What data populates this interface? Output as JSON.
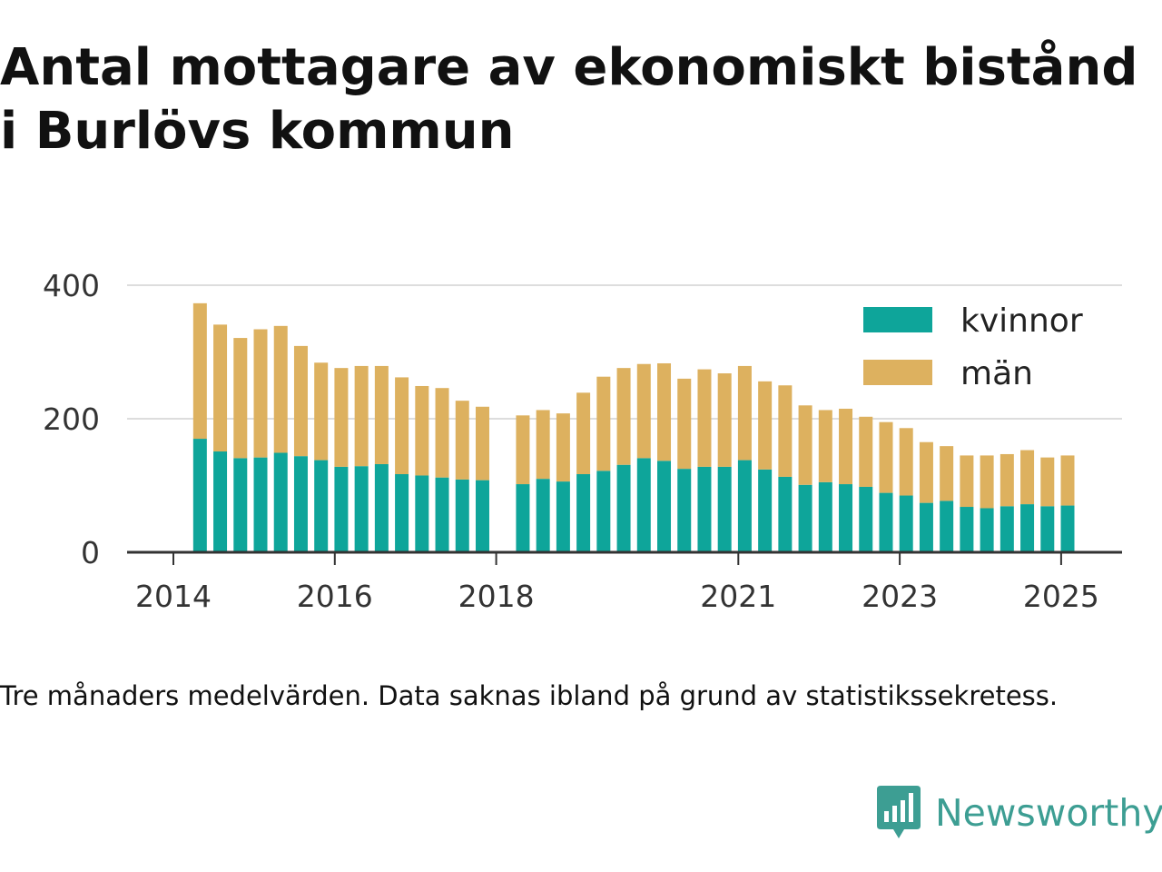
{
  "title_line1": "Antal mottagare av ekonomiskt bistånd",
  "title_line2": "i Burlövs kommun",
  "caption": "Tre månaders medelvärden. Data saknas ibland på grund av statistikssekretess.",
  "logo_text": "Newsworthy",
  "colors": {
    "kvinnor": "#0ea59a",
    "man": "#ddb15f",
    "grid": "#dddddd",
    "axis": "#333333",
    "logo": "#3d9e93"
  },
  "chart_data": {
    "type": "bar",
    "stacked": true,
    "title": "Antal mottagare av ekonomiskt bistånd i Burlövs kommun",
    "xlabel": "",
    "ylabel": "",
    "ylim": [
      0,
      400
    ],
    "yticks": [
      0,
      200,
      400
    ],
    "xticks": [
      {
        "label": "2014",
        "value": 2014.0
      },
      {
        "label": "2016",
        "value": 2016.0
      },
      {
        "label": "2018",
        "value": 2018.0
      },
      {
        "label": "2021",
        "value": 2021.0
      },
      {
        "label": "2023",
        "value": 2023.0
      },
      {
        "label": "2025",
        "value": 2025.0
      }
    ],
    "grid": true,
    "legend": "top-right",
    "x": [
      2014.33,
      2014.58,
      2014.83,
      2015.08,
      2015.33,
      2015.58,
      2015.83,
      2016.08,
      2016.33,
      2016.58,
      2016.83,
      2017.08,
      2017.33,
      2017.58,
      2017.83,
      2018.33,
      2018.58,
      2018.83,
      2019.08,
      2019.33,
      2019.58,
      2019.83,
      2020.08,
      2020.33,
      2020.58,
      2020.83,
      2021.08,
      2021.33,
      2021.58,
      2021.83,
      2022.08,
      2022.33,
      2022.58,
      2022.83,
      2023.08,
      2023.33,
      2023.58,
      2023.83,
      2024.08,
      2024.33,
      2024.58,
      2024.83,
      2025.08
    ],
    "series": [
      {
        "name": "kvinnor",
        "color": "#0ea59a",
        "values": [
          170,
          151,
          141,
          142,
          149,
          144,
          138,
          128,
          129,
          132,
          117,
          115,
          112,
          109,
          108,
          102,
          110,
          106,
          117,
          122,
          131,
          141,
          137,
          125,
          128,
          128,
          138,
          124,
          113,
          101,
          105,
          102,
          98,
          89,
          85,
          74,
          77,
          68,
          66,
          69,
          72,
          69,
          70
        ]
      },
      {
        "name": "män",
        "color": "#ddb15f",
        "values": [
          203,
          190,
          180,
          192,
          190,
          165,
          146,
          148,
          150,
          147,
          145,
          134,
          134,
          118,
          110,
          103,
          103,
          102,
          122,
          141,
          145,
          141,
          146,
          135,
          146,
          140,
          141,
          132,
          137,
          119,
          108,
          113,
          105,
          106,
          101,
          91,
          82,
          77,
          79,
          78,
          81,
          73,
          75
        ]
      }
    ]
  }
}
